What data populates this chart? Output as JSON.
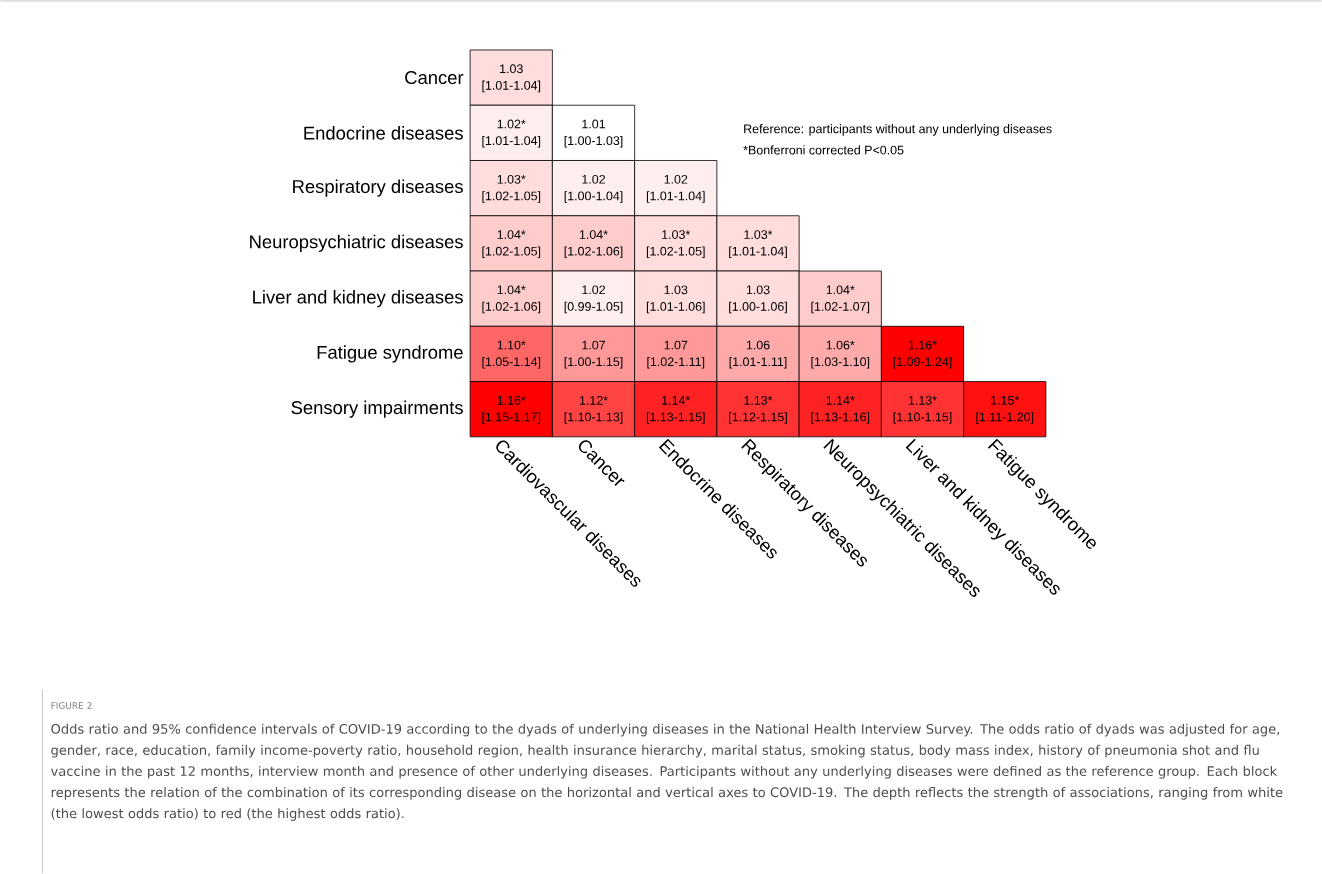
{
  "chart_data": {
    "type": "heatmap",
    "data_labels": true,
    "categories": [
      "Cardiovascular diseases",
      "Cancer",
      "Endocrine diseases",
      "Respiratory diseases",
      "Neuropsychiatric diseases",
      "Liver and kidney diseases",
      "Fatigue syndrome"
    ],
    "y_categories": [
      "Cancer",
      "Endocrine diseases",
      "Respiratory diseases",
      "Neuropsychiatric diseases",
      "Liver and kidney diseases",
      "Fatigue syndrome",
      "Sensory impairments"
    ],
    "cells": [
      [
        1.03,
        null,
        null,
        null,
        null,
        null,
        null
      ],
      [
        1.02,
        1.01,
        null,
        null,
        null,
        null,
        null
      ],
      [
        1.03,
        1.02,
        1.02,
        null,
        null,
        null,
        null
      ],
      [
        1.04,
        1.04,
        1.03,
        1.03,
        null,
        null,
        null
      ],
      [
        1.04,
        1.02,
        1.03,
        1.03,
        1.04,
        null,
        null
      ],
      [
        1.1,
        1.07,
        1.07,
        1.06,
        1.06,
        1.16,
        null
      ],
      [
        1.16,
        1.12,
        1.14,
        1.13,
        1.14,
        1.13,
        1.15
      ]
    ],
    "cell_labels": [
      [
        "1.03",
        null,
        null,
        null,
        null,
        null,
        null
      ],
      [
        "1.02*",
        "1.01",
        null,
        null,
        null,
        null,
        null
      ],
      [
        "1.03*",
        "1.02",
        "1.02",
        null,
        null,
        null,
        null
      ],
      [
        "1.04*",
        "1.04*",
        "1.03*",
        "1.03*",
        null,
        null,
        null
      ],
      [
        "1.04*",
        "1.02",
        "1.03",
        "1.03",
        "1.04*",
        null,
        null
      ],
      [
        "1.10*",
        "1.07",
        "1.07",
        "1.06",
        "1.06*",
        "1.16*",
        null
      ],
      [
        "1.16*",
        "1.12*",
        "1.14*",
        "1.13*",
        "1.14*",
        "1.13*",
        "1.15*"
      ]
    ],
    "annotations": [
      "Reference: participants without any underlying diseases",
      "*Bonferroni corrected P<0.05",
      "FIGURE 2",
      "Odds ratio and 95% confidence intervals of COVID-19 according to the dyads of underlying diseases in the National Health Interview Survey. The odds ratio of dyads was adjusted for age, gender, race, education, family income-poverty ratio, household region, health insurance hierarchy, marital status, smoking status, body mass index, history of pneumonia shot and flu vaccine in the past 12 months, interview month and presence of other underlying diseases. Participants without any underlying diseases were defined as the reference group. Each block represents the relation of the combination of its corresponding disease on the horizontal and vertical axes to COVID-19. The depth reflects the strength of associations, ranging from white (the lowest odds ratio) to red (the highest odds ratio).",
      "[1.01-1.04]",
      "[1.01-1.04]",
      "[1.00-1.03]",
      "[1.02-1.05]",
      "[1.00-1.04]",
      "[1.01-1.04]",
      "[1.02-1.05]",
      "[1.02-1.06]",
      "[1.02-1.05]",
      "[1.01-1.04]",
      "[1.02-1.06]",
      "[0.99-1.05]",
      "[1.01-1.06]",
      "[1.00-1.06]",
      "[1.02-1.07]",
      "[1.05-1.14]",
      "[1.00-1.15]",
      "[1.02-1.11]",
      "[1.01-1.11]",
      "[1.03-1.10]",
      "[1.09-1.24]",
      "[1.15-1.17]",
      "[1.10-1.13]",
      "[1.13-1.15]",
      "[1.12-1.15]",
      "[1.13-1.16]",
      "[1.10-1.15]",
      "[1.11-1.20]"
    ]
  }
}
